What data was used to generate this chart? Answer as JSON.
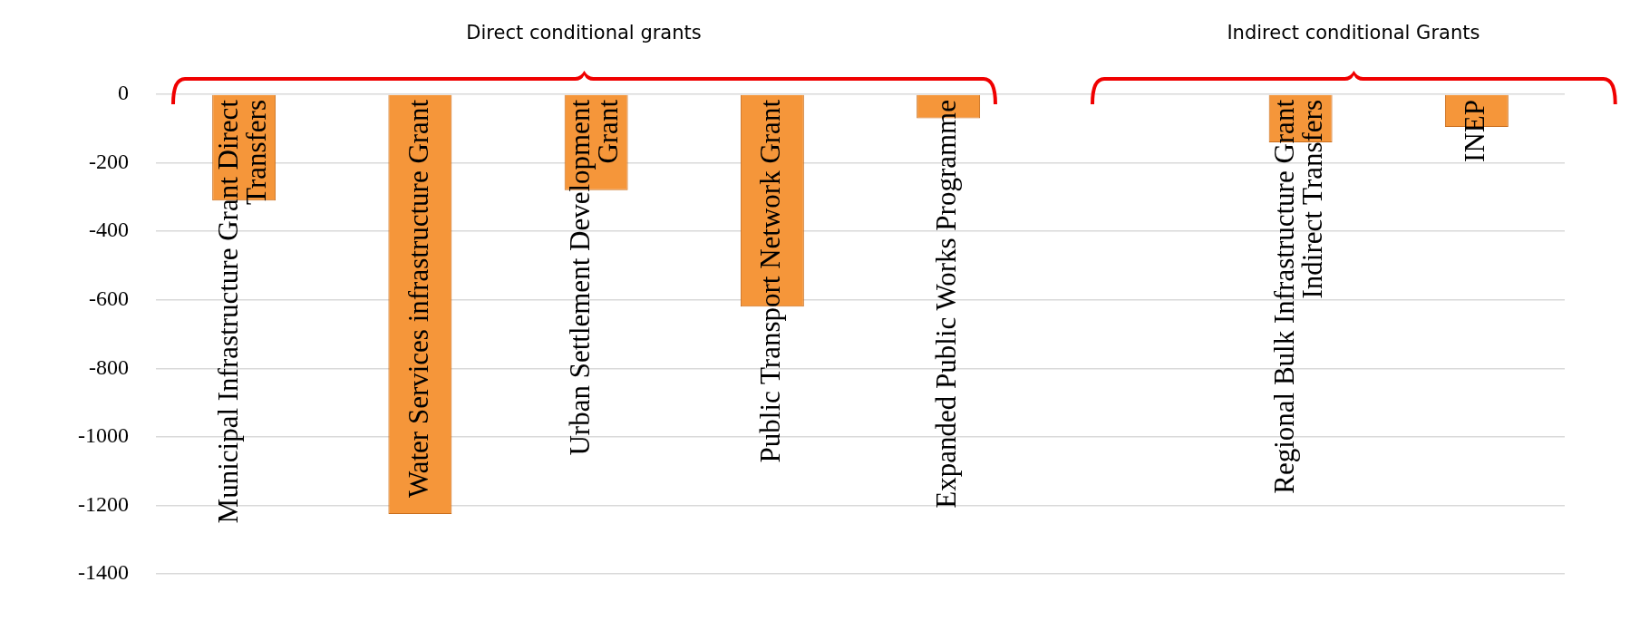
{
  "chart_data": {
    "type": "bar",
    "categories": [
      "Municipal Infrastructure Grant Direct Transfers",
      "Water Services infrastructure Grant",
      "Urban Settlement Development Grant",
      "Public Transport Network Grant",
      "Expanded Public Works Programme",
      null,
      "Regional Bulk Infrastructure Grant Indirect Transfers",
      "INEP"
    ],
    "values": [
      -310,
      -1225,
      -280,
      -620,
      -70,
      null,
      -140,
      -95
    ],
    "color": "#f5963a",
    "ylim": [
      -1400,
      0
    ],
    "yticks": [
      -1400,
      -1200,
      -1000,
      -800,
      -600,
      -400,
      -200,
      0
    ],
    "grid": "y",
    "annotations": [
      "Direct conditional grants",
      "Indirect conditional Grants"
    ]
  }
}
